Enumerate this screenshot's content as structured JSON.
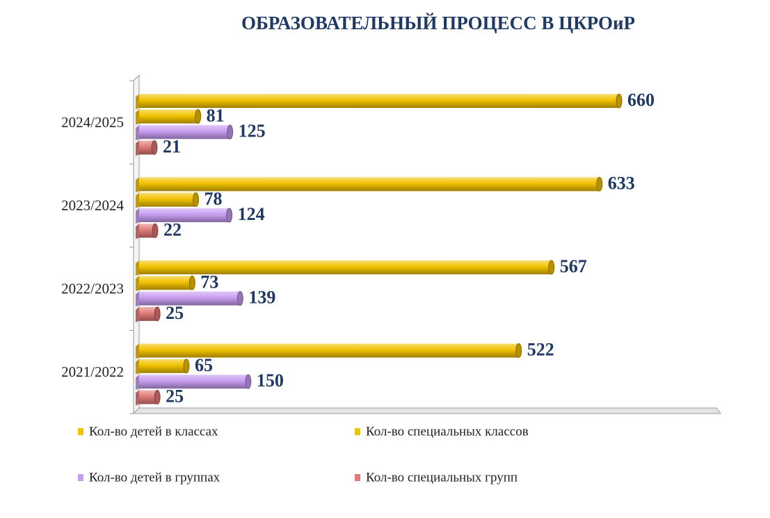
{
  "colors": {
    "gold": "#f2c200",
    "violet": "#c79df0",
    "rose": "#e07a76",
    "title": "#1f3864",
    "value_label": "#1f3864"
  },
  "chart_data": {
    "type": "bar",
    "orientation": "horizontal",
    "title": "ОБРАЗОВАТЕЛЬНЫЙ ПРОЦЕСС В ЦКРОиР",
    "categories": [
      "2024/2025",
      "2023/2024",
      "2022/2023",
      "2021/2022"
    ],
    "series": [
      {
        "name": "Кол-во детей в классах",
        "color": "#f2c200",
        "values": [
          660,
          633,
          567,
          522
        ]
      },
      {
        "name": "Кол-во специальных классов",
        "color": "#f2c200",
        "values": [
          81,
          78,
          73,
          65
        ]
      },
      {
        "name": "Кол-во детей в группах",
        "color": "#c79df0",
        "values": [
          125,
          124,
          139,
          150
        ]
      },
      {
        "name": "Кол-во специальных групп",
        "color": "#e07a76",
        "values": [
          21,
          22,
          25,
          25
        ]
      }
    ],
    "xlim": [
      0,
      720
    ],
    "grid": false,
    "legend_position": "bottom",
    "data_labels": true
  }
}
